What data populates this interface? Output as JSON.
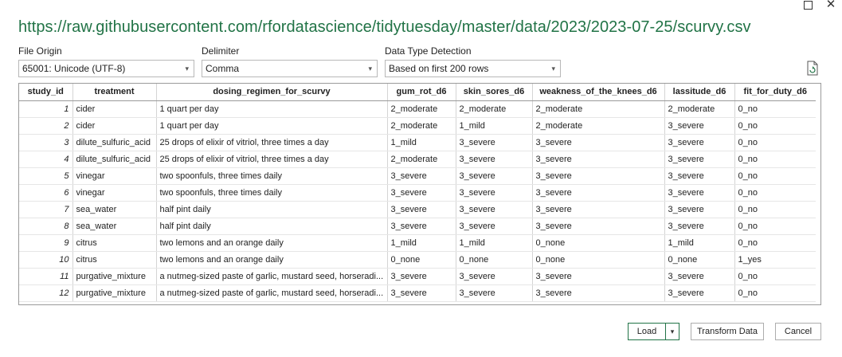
{
  "window": {
    "maximize_icon": "maximize-icon",
    "close_glyph": "✕"
  },
  "url": "https://raw.githubusercontent.com/rfordatascience/tidytuesday/master/data/2023/2023-07-25/scurvy.csv",
  "file_origin": {
    "label": "File Origin",
    "value": "65001: Unicode (UTF-8)"
  },
  "delimiter": {
    "label": "Delimiter",
    "value": "Comma"
  },
  "detection": {
    "label": "Data Type Detection",
    "value": "Based on first 200 rows"
  },
  "chevron": "▾",
  "columns": [
    "study_id",
    "treatment",
    "dosing_regimen_for_scurvy",
    "gum_rot_d6",
    "skin_sores_d6",
    "weakness_of_the_knees_d6",
    "lassitude_d6",
    "fit_for_duty_d6"
  ],
  "rows": [
    [
      "1",
      "cider",
      "1 quart per day",
      "2_moderate",
      "2_moderate",
      "2_moderate",
      "2_moderate",
      "0_no"
    ],
    [
      "2",
      "cider",
      "1 quart per day",
      "2_moderate",
      "1_mild",
      "2_moderate",
      "3_severe",
      "0_no"
    ],
    [
      "3",
      "dilute_sulfuric_acid",
      "25 drops of elixir of vitriol, three times a day",
      "1_mild",
      "3_severe",
      "3_severe",
      "3_severe",
      "0_no"
    ],
    [
      "4",
      "dilute_sulfuric_acid",
      "25 drops of elixir of vitriol, three times a day",
      "2_moderate",
      "3_severe",
      "3_severe",
      "3_severe",
      "0_no"
    ],
    [
      "5",
      "vinegar",
      "two spoonfuls, three times daily",
      "3_severe",
      "3_severe",
      "3_severe",
      "3_severe",
      "0_no"
    ],
    [
      "6",
      "vinegar",
      "two spoonfuls, three times daily",
      "3_severe",
      "3_severe",
      "3_severe",
      "3_severe",
      "0_no"
    ],
    [
      "7",
      "sea_water",
      "half pint daily",
      "3_severe",
      "3_severe",
      "3_severe",
      "3_severe",
      "0_no"
    ],
    [
      "8",
      "sea_water",
      "half pint daily",
      "3_severe",
      "3_severe",
      "3_severe",
      "3_severe",
      "0_no"
    ],
    [
      "9",
      "citrus",
      "two lemons and an orange daily",
      "1_mild",
      "1_mild",
      "0_none",
      "1_mild",
      "0_no"
    ],
    [
      "10",
      "citrus",
      "two lemons and an orange daily",
      "0_none",
      "0_none",
      "0_none",
      "0_none",
      "1_yes"
    ],
    [
      "11",
      "purgative_mixture",
      "a nutmeg-sized paste of garlic, mustard seed, horseradi...",
      "3_severe",
      "3_severe",
      "3_severe",
      "3_severe",
      "0_no"
    ],
    [
      "12",
      "purgative_mixture",
      "a nutmeg-sized paste of garlic, mustard seed, horseradi...",
      "3_severe",
      "3_severe",
      "3_severe",
      "3_severe",
      "0_no"
    ]
  ],
  "buttons": {
    "load": "Load",
    "transform": "Transform Data",
    "cancel": "Cancel"
  },
  "colors": {
    "accent": "#217346"
  }
}
